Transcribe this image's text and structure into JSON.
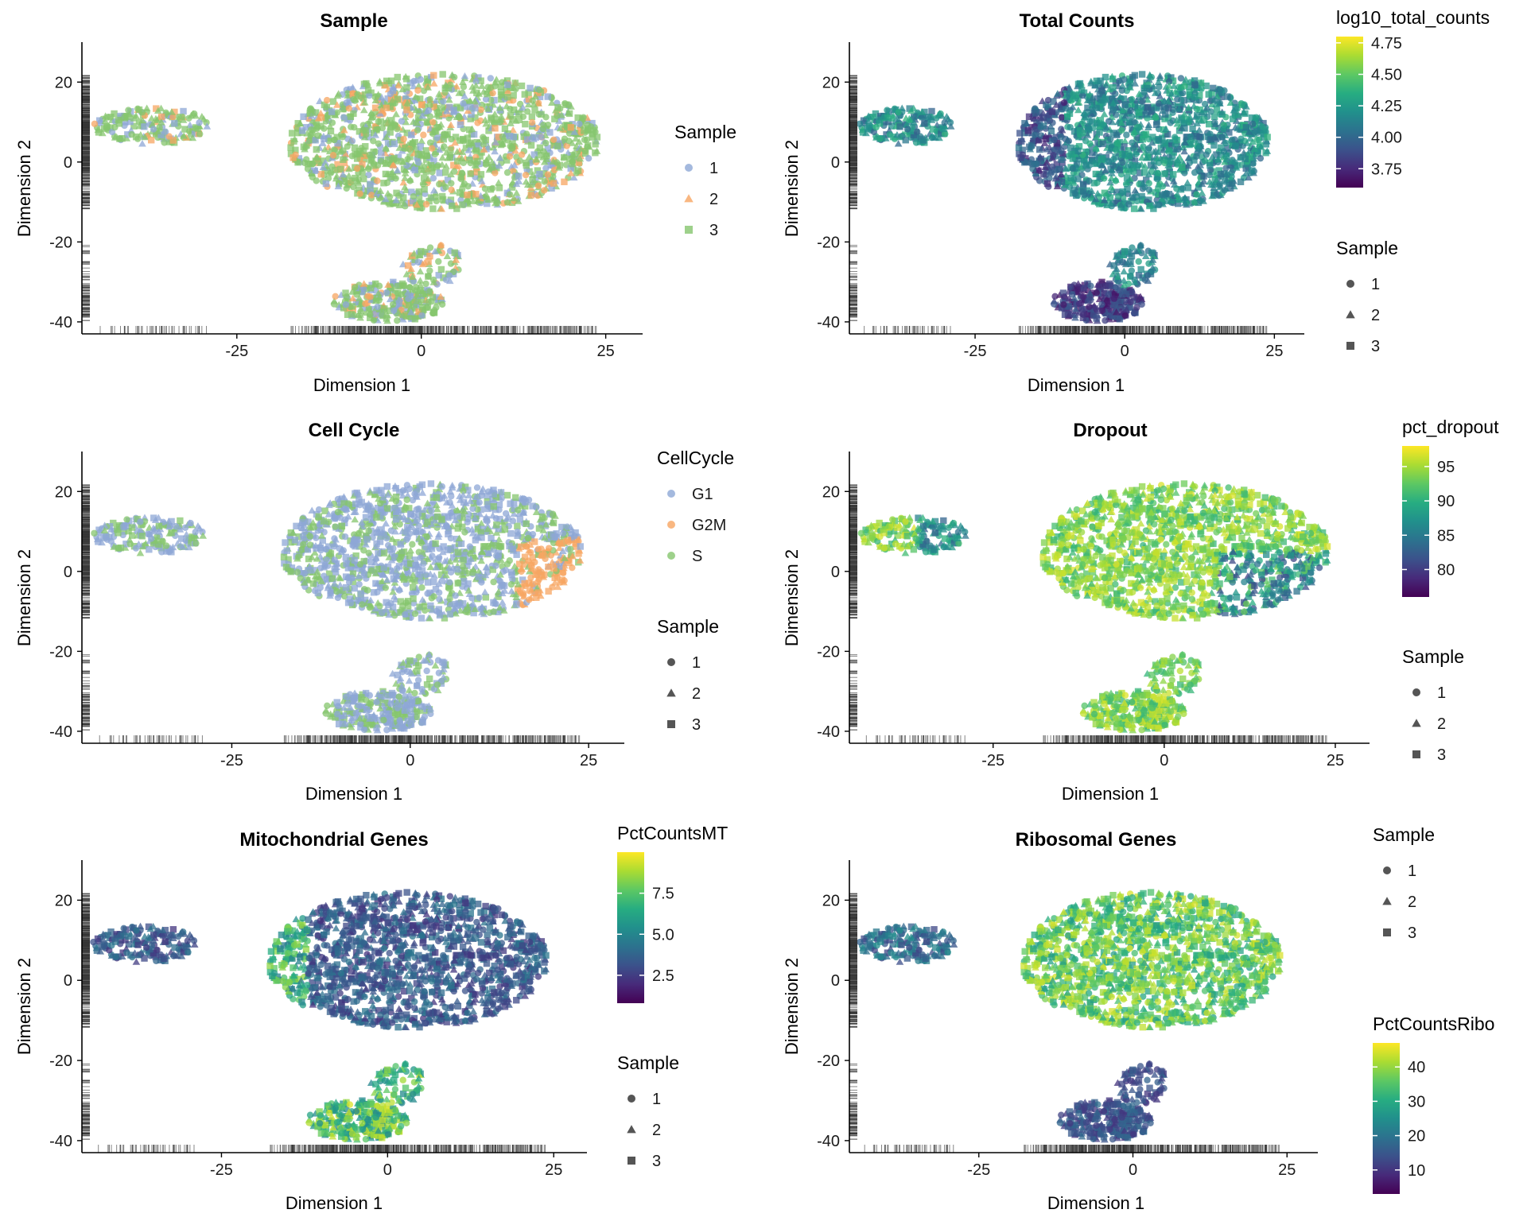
{
  "chart_data": [
    {
      "type": "scatter",
      "title": "Sample",
      "xlabel": "Dimension 1",
      "ylabel": "Dimension 2",
      "xticks": [
        -25,
        0,
        25
      ],
      "yticks": [
        20,
        0,
        -20,
        -40
      ],
      "xlim": [
        -46,
        30
      ],
      "ylim": [
        -43,
        30
      ],
      "color_by": "Sample",
      "legends": [
        {
          "title": "Sample",
          "kind": "categorical",
          "entries": [
            {
              "label": "1",
              "shape": "circle",
              "color": "#8DA7D6"
            },
            {
              "label": "2",
              "shape": "triangle",
              "color": "#F7A562"
            },
            {
              "label": "3",
              "shape": "square",
              "color": "#86C56E"
            }
          ]
        }
      ]
    },
    {
      "type": "scatter",
      "title": "Total Counts",
      "xlabel": "Dimension 1",
      "ylabel": "Dimension 2",
      "xticks": [
        -25,
        0,
        25
      ],
      "yticks": [
        20,
        0,
        -20,
        -40
      ],
      "xlim": [
        -46,
        30
      ],
      "ylim": [
        -43,
        30
      ],
      "color_by": "log10_total_counts",
      "legends": [
        {
          "title": "log10_total_counts",
          "kind": "gradient",
          "range": [
            3.6,
            4.8
          ],
          "ticks": [
            4.75,
            4.5,
            4.25,
            4.0,
            3.75
          ],
          "tick_labels": [
            "4.75",
            "4.50",
            "4.25",
            "4.00",
            "3.75"
          ]
        },
        {
          "title": "Sample",
          "kind": "shape",
          "entries": [
            {
              "label": "1",
              "shape": "circle"
            },
            {
              "label": "2",
              "shape": "triangle"
            },
            {
              "label": "3",
              "shape": "square"
            }
          ]
        }
      ]
    },
    {
      "type": "scatter",
      "title": "Cell Cycle",
      "xlabel": "Dimension 1",
      "ylabel": "Dimension 2",
      "xticks": [
        -25,
        0,
        25
      ],
      "yticks": [
        20,
        0,
        -20,
        -40
      ],
      "xlim": [
        -46,
        30
      ],
      "ylim": [
        -43,
        30
      ],
      "color_by": "CellCycle",
      "legends": [
        {
          "title": "CellCycle",
          "kind": "categorical",
          "entries": [
            {
              "label": "G1",
              "shape": "circle",
              "color": "#8DA7D6"
            },
            {
              "label": "G2M",
              "shape": "circle",
              "color": "#F7A562"
            },
            {
              "label": "S",
              "shape": "circle",
              "color": "#86C56E"
            }
          ]
        },
        {
          "title": "Sample",
          "kind": "shape",
          "entries": [
            {
              "label": "1",
              "shape": "circle"
            },
            {
              "label": "2",
              "shape": "triangle"
            },
            {
              "label": "3",
              "shape": "square"
            }
          ]
        }
      ]
    },
    {
      "type": "scatter",
      "title": "Dropout",
      "xlabel": "Dimension 1",
      "ylabel": "Dimension 2",
      "xticks": [
        -25,
        0,
        25
      ],
      "yticks": [
        20,
        0,
        -20,
        -40
      ],
      "xlim": [
        -46,
        30
      ],
      "ylim": [
        -43,
        30
      ],
      "color_by": "pct_dropout",
      "legends": [
        {
          "title": "pct_dropout",
          "kind": "gradient",
          "range": [
            76,
            98
          ],
          "ticks": [
            95,
            90,
            85,
            80
          ],
          "tick_labels": [
            "95",
            "90",
            "85",
            "80"
          ]
        },
        {
          "title": "Sample",
          "kind": "shape",
          "entries": [
            {
              "label": "1",
              "shape": "circle"
            },
            {
              "label": "2",
              "shape": "triangle"
            },
            {
              "label": "3",
              "shape": "square"
            }
          ]
        }
      ]
    },
    {
      "type": "scatter",
      "title": "Mitochondrial Genes",
      "xlabel": "Dimension 1",
      "ylabel": "Dimension 2",
      "xticks": [
        -25,
        0,
        25
      ],
      "yticks": [
        20,
        0,
        -20,
        -40
      ],
      "xlim": [
        -46,
        30
      ],
      "ylim": [
        -43,
        30
      ],
      "color_by": "PctCountsMT",
      "legends": [
        {
          "title": "PctCountsMT",
          "kind": "gradient",
          "range": [
            0.8,
            10.0
          ],
          "ticks": [
            7.5,
            5.0,
            2.5
          ],
          "tick_labels": [
            "7.5",
            "5.0",
            "2.5"
          ]
        },
        {
          "title": "Sample",
          "kind": "shape",
          "entries": [
            {
              "label": "1",
              "shape": "circle"
            },
            {
              "label": "2",
              "shape": "triangle"
            },
            {
              "label": "3",
              "shape": "square"
            }
          ]
        }
      ]
    },
    {
      "type": "scatter",
      "title": "Ribosomal Genes",
      "xlabel": "Dimension 1",
      "ylabel": "Dimension 2",
      "xticks": [
        -25,
        0,
        25
      ],
      "yticks": [
        20,
        0,
        -20,
        -40
      ],
      "xlim": [
        -46,
        30
      ],
      "ylim": [
        -43,
        30
      ],
      "color_by": "PctCountsRibo",
      "legends": [
        {
          "title": "Sample",
          "kind": "shape",
          "entries": [
            {
              "label": "1",
              "shape": "circle"
            },
            {
              "label": "2",
              "shape": "triangle"
            },
            {
              "label": "3",
              "shape": "square"
            }
          ]
        },
        {
          "title": "PctCountsRibo",
          "kind": "gradient",
          "range": [
            3,
            47
          ],
          "ticks": [
            40,
            30,
            20,
            10
          ],
          "tick_labels": [
            "40",
            "30",
            "20",
            "10"
          ]
        }
      ]
    }
  ],
  "clusters": [
    {
      "name": "upper-left-cluster",
      "cx": -36.5,
      "cy": 9,
      "rx": 8,
      "ry": 4.5,
      "n": 160
    },
    {
      "name": "main-cluster",
      "cx": 3,
      "cy": 5,
      "rx": 21,
      "ry": 17,
      "n": 1400
    },
    {
      "name": "bottom-cluster",
      "cx": -4.5,
      "cy": -35,
      "rx": 7.5,
      "ry": 5,
      "n": 240
    },
    {
      "name": "bottom-tail",
      "cx": 1.5,
      "cy": -26,
      "rx": 4,
      "ry": 5.5,
      "n": 70
    }
  ],
  "colors": {
    "sample": [
      "#8DA7D6",
      "#F7A562",
      "#86C56E"
    ],
    "cellcycle": [
      "#8DA7D6",
      "#F7A562",
      "#86C56E"
    ],
    "viridis": [
      "#440154",
      "#472A7A",
      "#3B528B",
      "#2C728E",
      "#21908C",
      "#27AD81",
      "#5DC863",
      "#AADC32",
      "#FDE725"
    ],
    "legend_shape": "#555555",
    "rug": "#333333"
  }
}
